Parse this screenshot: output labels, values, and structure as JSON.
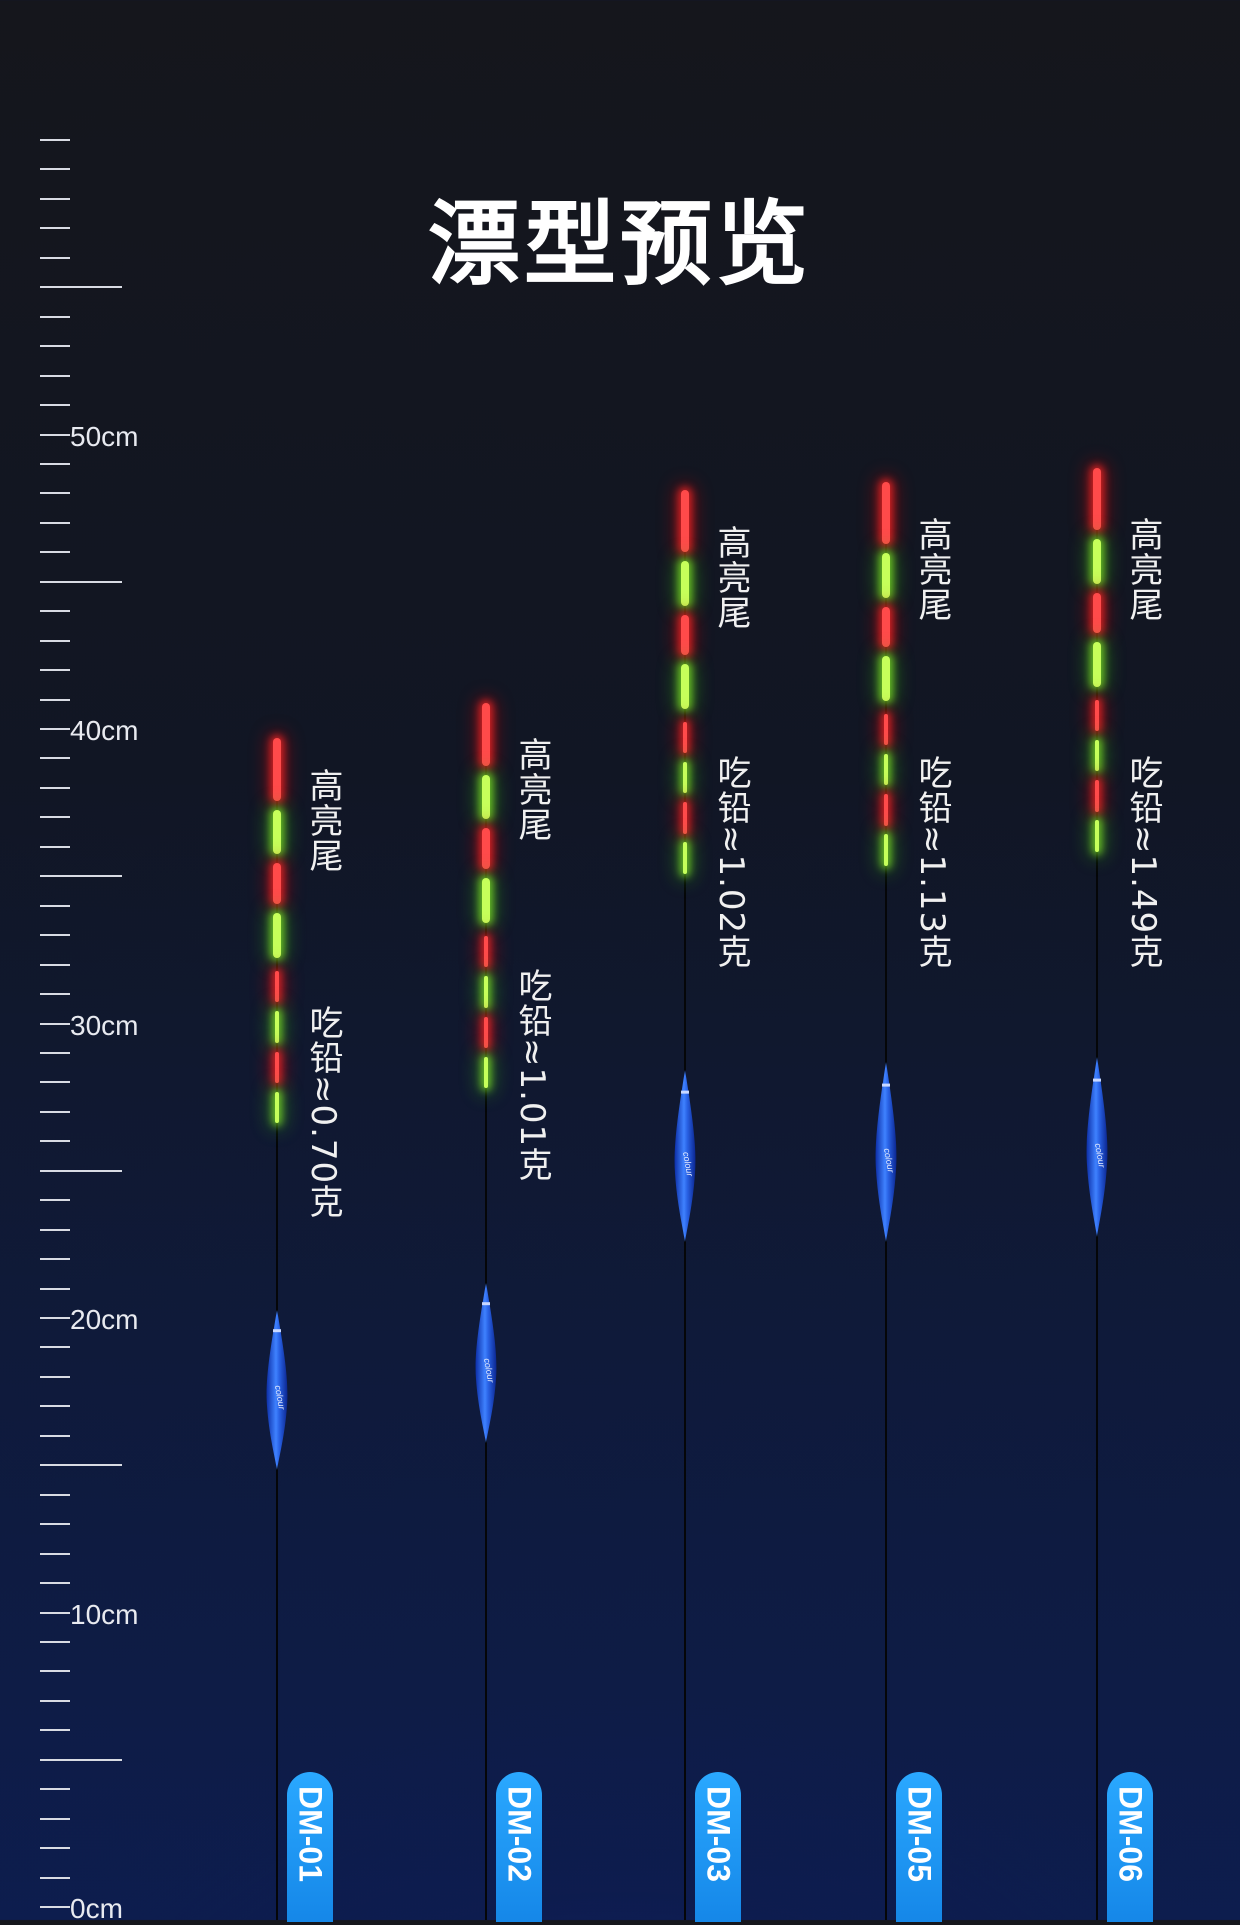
{
  "title": "漂型预览",
  "ruler": {
    "labels": [
      "50cm",
      "40cm",
      "30cm",
      "20cm",
      "10cm",
      "0cm"
    ]
  },
  "colors": {
    "tail_red": "#ff4a4a",
    "tail_green": "#c6ff5a",
    "body_blue": "#1f5fe0",
    "pill_blue": "#1a96f2"
  },
  "floats": [
    {
      "id": "dm01",
      "model": "DM-01",
      "tail_label": "高亮尾",
      "weight_label": "吃铅≈0.70克",
      "body_logo": "colour"
    },
    {
      "id": "dm02",
      "model": "DM-02",
      "tail_label": "高亮尾",
      "weight_label": "吃铅≈1.01克",
      "body_logo": "colour"
    },
    {
      "id": "dm03",
      "model": "DM-03",
      "tail_label": "高亮尾",
      "weight_label": "吃铅≈1.02克",
      "body_logo": "colour"
    },
    {
      "id": "dm05",
      "model": "DM-05",
      "tail_label": "高亮尾",
      "weight_label": "吃铅≈1.13克",
      "body_logo": "colour"
    },
    {
      "id": "dm06",
      "model": "DM-06",
      "tail_label": "高亮尾",
      "weight_label": "吃铅≈1.49克",
      "body_logo": "colour"
    }
  ]
}
